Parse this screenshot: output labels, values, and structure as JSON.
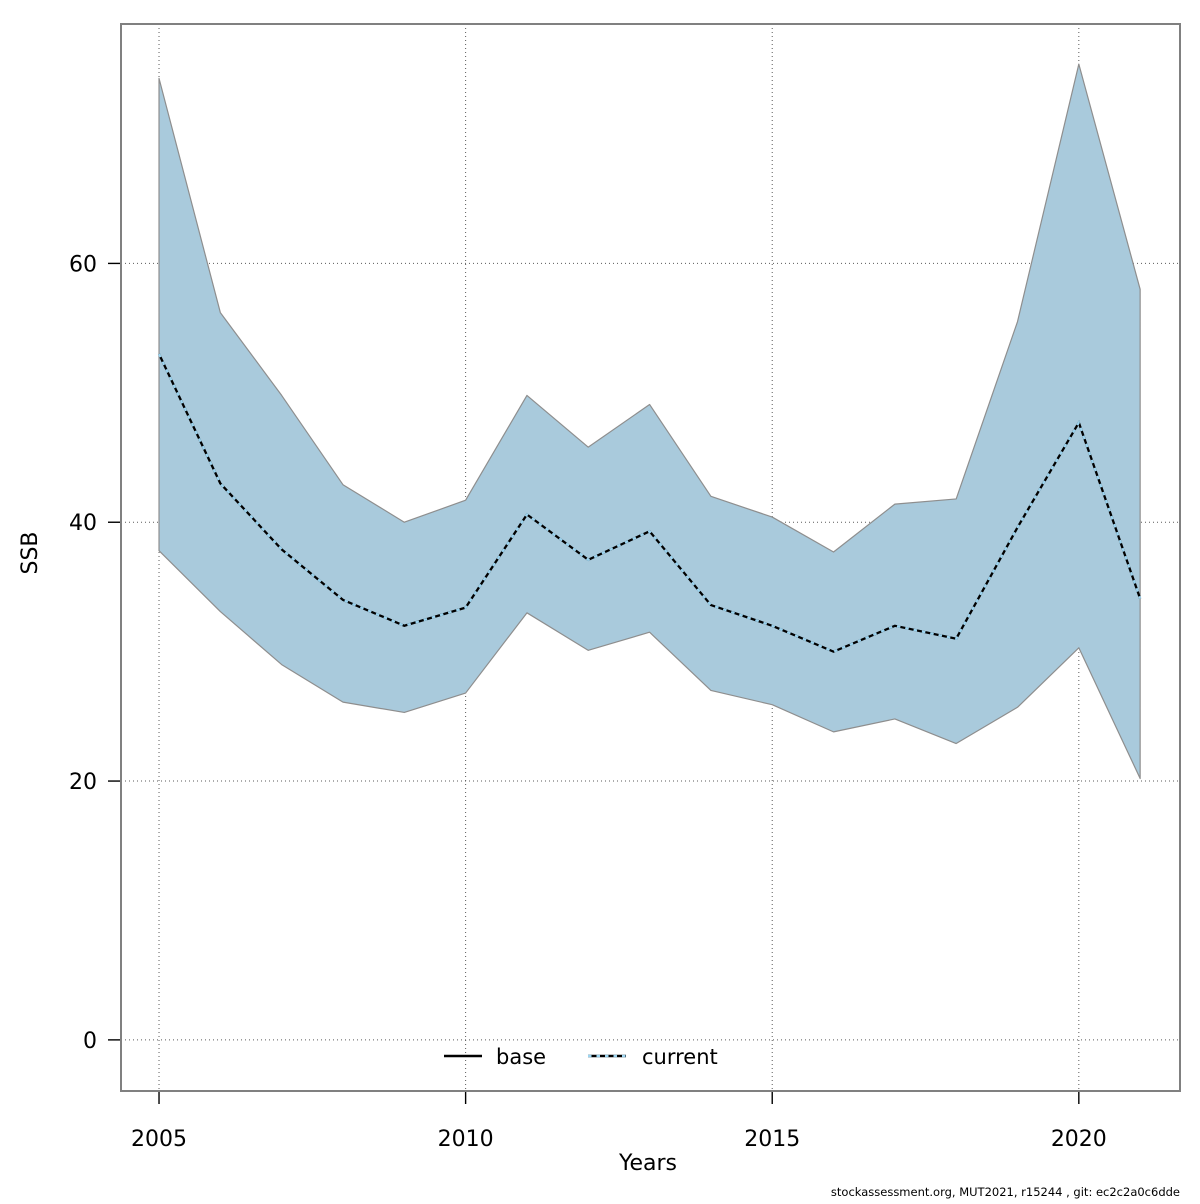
{
  "chart_data": {
    "type": "area",
    "title": "",
    "xlabel": "Years",
    "ylabel": "SSB",
    "xlim": [
      2004.38,
      2021.65
    ],
    "ylim": [
      -3.95,
      78.5
    ],
    "grid": "dotted",
    "x": [
      2005,
      2006,
      2007,
      2008,
      2009,
      2010,
      2011,
      2012,
      2013,
      2014,
      2015,
      2016,
      2017,
      2018,
      2019,
      2020,
      2021
    ],
    "series": [
      {
        "name": "base",
        "style": "solid-black",
        "values": [
          53.0,
          43.0,
          37.9,
          34.0,
          32.0,
          33.4,
          40.6,
          37.1,
          39.3,
          33.6,
          32.0,
          30.0,
          32.0,
          31.0,
          39.6,
          47.7,
          34.1
        ]
      },
      {
        "name": "current",
        "style": "dotted-lightblue",
        "values": [
          53.0,
          43.0,
          37.9,
          34.0,
          32.0,
          33.4,
          40.6,
          37.1,
          39.3,
          33.6,
          32.0,
          30.0,
          32.0,
          31.0,
          39.6,
          47.7,
          34.1
        ]
      },
      {
        "name": "ci_lower",
        "style": "ribbon-lower",
        "values": [
          37.8,
          33.1,
          29.0,
          26.1,
          25.3,
          26.8,
          33.0,
          30.1,
          31.5,
          27.0,
          25.9,
          23.8,
          24.8,
          22.9,
          25.7,
          30.3,
          20.2
        ]
      },
      {
        "name": "ci_upper",
        "style": "ribbon-upper",
        "values": [
          74.3,
          56.2,
          49.8,
          42.9,
          40.0,
          41.7,
          49.8,
          45.8,
          49.1,
          42.0,
          40.4,
          37.7,
          41.4,
          41.8,
          55.5,
          75.4,
          58.0
        ]
      }
    ],
    "xticks": [
      2005,
      2010,
      2015,
      2020
    ],
    "yticks": [
      0,
      20,
      40,
      60
    ],
    "legend_position": "bottom-center"
  },
  "axes": {
    "x_label": "Years",
    "y_label": "SSB"
  },
  "legend": {
    "base_label": "base",
    "current_label": "current"
  },
  "footer": {
    "credit": "stockassessment.org, MUT2021, r15244 , git: ec2c2a0c6dde"
  },
  "colors": {
    "ribbon_fill": "#a9cadc",
    "ribbon_edge": "#8e8e8e",
    "base_line": "#000000",
    "current_line": "#9cd4f0",
    "gridline": "#5a5a5a",
    "plot_border": "#808080"
  }
}
